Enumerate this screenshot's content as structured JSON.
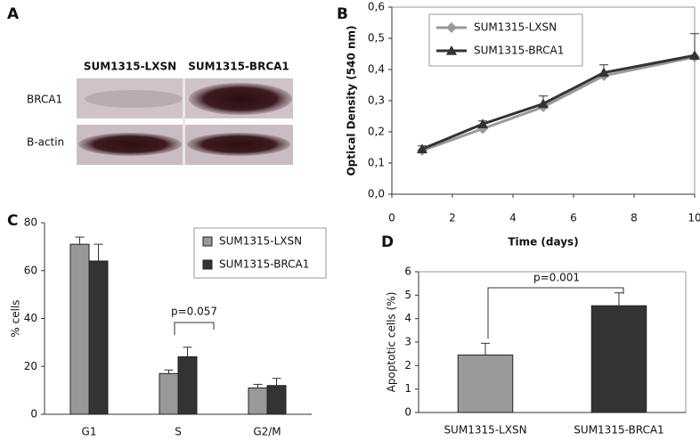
{
  "blot": {
    "label": "A",
    "lanes": [
      "SUM1315-LXSN",
      "SUM1315-BRCA1"
    ],
    "rows": [
      "BRCA1",
      "B-actin"
    ]
  },
  "chart_data": [
    {
      "type": "line",
      "panel": "B",
      "x": [
        1,
        3,
        5,
        7,
        10
      ],
      "xlim": [
        0,
        10
      ],
      "xticks": [
        0,
        2,
        4,
        6,
        8,
        10
      ],
      "ylim": [
        0,
        0.6
      ],
      "yticks": [
        {
          "value": 0,
          "label": "0,0"
        },
        {
          "value": 0.1,
          "label": "0,1"
        },
        {
          "value": 0.2,
          "label": "0,2"
        },
        {
          "value": 0.3,
          "label": "0,3"
        },
        {
          "value": 0.4,
          "label": "0,4"
        },
        {
          "value": 0.5,
          "label": "0,5"
        },
        {
          "value": 0.6,
          "label": "0,6"
        }
      ],
      "xlabel": "Time (days)",
      "ylabel": "Optical Density (540 nm)",
      "series": [
        {
          "name": "SUM1315-LXSN",
          "color": "#999999",
          "marker": "diamond",
          "values": [
            0.14,
            0.21,
            0.28,
            0.38,
            0.44
          ]
        },
        {
          "name": "SUM1315-BRCA1",
          "color": "#333333",
          "marker": "triangle",
          "values": [
            0.145,
            0.225,
            0.29,
            0.39,
            0.445
          ],
          "errors": [
            0.01,
            0.01,
            0.025,
            0.025,
            0.07
          ]
        }
      ]
    },
    {
      "type": "bar",
      "panel": "C",
      "categories": [
        "G1",
        "S",
        "G2/M"
      ],
      "ylim": [
        0,
        80
      ],
      "yticks": [
        0,
        20,
        40,
        60,
        80
      ],
      "ylabel": "% cells",
      "annotation": "p=0.057",
      "series": [
        {
          "name": "SUM1315-LXSN",
          "color": "#999999",
          "values": [
            71,
            17,
            11
          ],
          "errors": [
            3,
            1.5,
            1.5
          ]
        },
        {
          "name": "SUM1315-BRCA1",
          "color": "#333333",
          "values": [
            64,
            24,
            12
          ],
          "errors": [
            7,
            4,
            3
          ]
        }
      ]
    },
    {
      "type": "bar",
      "panel": "D",
      "categories": [
        "SUM1315-LXSN",
        "SUM1315-BRCA1"
      ],
      "values": [
        2.45,
        4.55
      ],
      "errors": [
        0.5,
        0.55
      ],
      "colors": [
        "#999999",
        "#333333"
      ],
      "ylim": [
        0,
        6
      ],
      "yticks": [
        0,
        1,
        2,
        3,
        4,
        5,
        6
      ],
      "ylabel": "Apoptotic cells (%)",
      "annotation": "p=0.001"
    }
  ]
}
